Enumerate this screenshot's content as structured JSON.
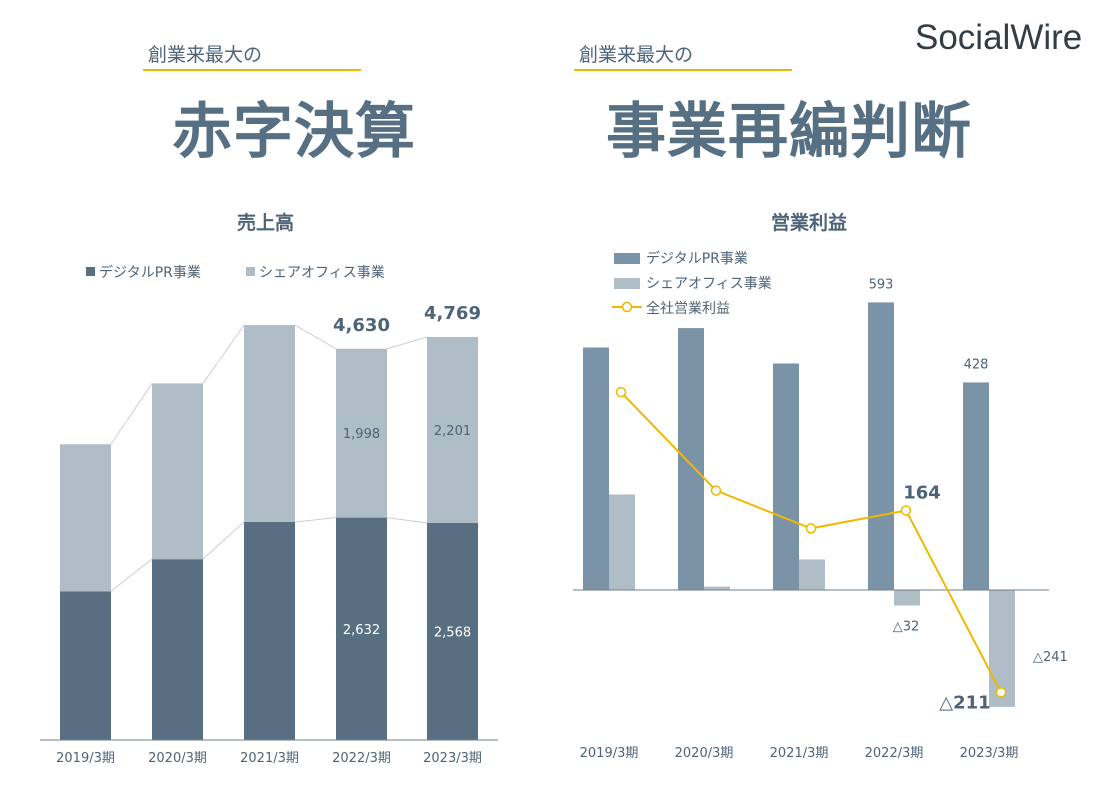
{
  "brand": {
    "logo": "SocialWire"
  },
  "left_header": {
    "subtitle": "創業来最大の",
    "headline": "赤字決算"
  },
  "right_header": {
    "subtitle": "創業来最大の",
    "headline": "事業再編判断"
  },
  "colors": {
    "dark": "#576f80",
    "light": "#afbdc7",
    "mid": "#7b93a6",
    "line": "#f0b800",
    "text": "#4d6478"
  },
  "chart_data": [
    {
      "type": "bar",
      "stacked": true,
      "title": "売上高",
      "categories": [
        "2019/3期",
        "2020/3期",
        "2021/3期",
        "2022/3期",
        "2023/3期"
      ],
      "series": [
        {
          "name": "デジタルPR事業",
          "values": [
            1760,
            2140,
            2580,
            2632,
            2568
          ]
        },
        {
          "name": "シェアオフィス事業",
          "values": [
            1740,
            2080,
            2330,
            1998,
            2201
          ]
        }
      ],
      "totals": [
        null,
        null,
        null,
        "4,630",
        "4,769"
      ],
      "segment_labels": {
        "series_0": [
          null,
          null,
          null,
          "2,632",
          "2,568"
        ],
        "series_1": [
          null,
          null,
          null,
          "1,998",
          "2,201"
        ]
      },
      "legend": "top-left"
    },
    {
      "type": "bar",
      "title": "営業利益",
      "categories": [
        "2019/3期",
        "2020/3期",
        "2021/3期",
        "2022/3期",
        "2023/3期"
      ],
      "series": [
        {
          "name": "デジタルPR事業",
          "values": [
            500,
            540,
            467,
            593,
            428
          ]
        },
        {
          "name": "シェアオフィス事業",
          "values": [
            197,
            7,
            63,
            -32,
            -241
          ]
        }
      ],
      "line": {
        "name": "全社営業利益",
        "values": [
          408,
          205,
          127,
          164,
          -211
        ]
      },
      "bar_labels": {
        "series_0": [
          null,
          null,
          null,
          "593",
          "428"
        ],
        "series_1": [
          null,
          null,
          null,
          "△32",
          "△241"
        ]
      },
      "line_labels": [
        null,
        null,
        null,
        "164",
        "△211"
      ],
      "legend": "top-left"
    }
  ]
}
